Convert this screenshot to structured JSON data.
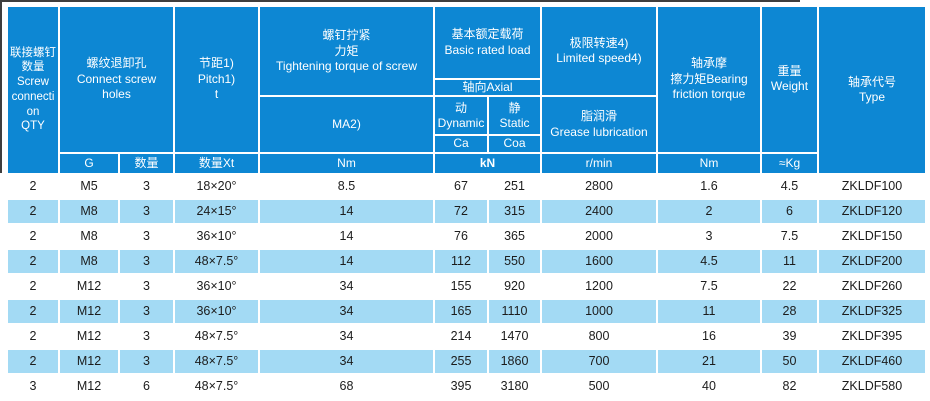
{
  "colors": {
    "header_blue": "#0d87d3",
    "row_alt_blue": "#a3daf4",
    "grid_white": "#ffffff",
    "data_text": "#1c1c1c",
    "edge_dark": "#3e3e3e"
  },
  "table": {
    "header": {
      "screw_connection_qty": "联接螺钉\n数量\nScrew\nconnecti\non\nQTY",
      "connect_screw_holes": "螺纹退卸孔\nConnect screw\nholes",
      "pitch": "节距1)\nPitch1)\nt",
      "tightening_torque": "螺钉拧紧\n力矩\nTightening torque of screw",
      "basic_rated_load": "基本额定载荷\nBasic rated load",
      "axial": "轴向Axial",
      "dynamic": "动\nDynamic",
      "static": "静\nStatic",
      "ca": "Ca",
      "coa": "Coa",
      "ma2": "MA2)",
      "limited_speed": "极限转速4)\nLimited speed4)",
      "grease_lubrication": "脂润滑\nGrease lubrication",
      "bearing_friction_torque": "轴承摩\n擦力矩Bearing\nfriction torque",
      "weight": "重量\nWeight",
      "type": "轴承代号\nType",
      "units": {
        "g": "G",
        "qty": "数量",
        "qty_xt": "数量Xt",
        "nm_torque": "Nm",
        "kn": "kN",
        "r_min": "r/min",
        "nm_friction": "Nm",
        "approx_kg": "≈Kg"
      }
    },
    "rows": [
      [
        "2",
        "M5",
        "3",
        "18×20°",
        "8.5",
        "67",
        "251",
        "2800",
        "1.6",
        "4.5",
        "ZKLDF100"
      ],
      [
        "2",
        "M8",
        "3",
        "24×15°",
        "14",
        "72",
        "315",
        "2400",
        "2",
        "6",
        "ZKLDF120"
      ],
      [
        "2",
        "M8",
        "3",
        "36×10°",
        "14",
        "76",
        "365",
        "2000",
        "3",
        "7.5",
        "ZKLDF150"
      ],
      [
        "2",
        "M8",
        "3",
        "48×7.5°",
        "14",
        "112",
        "550",
        "1600",
        "4.5",
        "11",
        "ZKLDF200"
      ],
      [
        "2",
        "M12",
        "3",
        "36×10°",
        "34",
        "155",
        "920",
        "1200",
        "7.5",
        "22",
        "ZKLDF260"
      ],
      [
        "2",
        "M12",
        "3",
        "36×10°",
        "34",
        "165",
        "1110",
        "1000",
        "11",
        "28",
        "ZKLDF325"
      ],
      [
        "2",
        "M12",
        "3",
        "48×7.5°",
        "34",
        "214",
        "1470",
        "800",
        "16",
        "39",
        "ZKLDF395"
      ],
      [
        "2",
        "M12",
        "3",
        "48×7.5°",
        "34",
        "255",
        "1860",
        "700",
        "21",
        "50",
        "ZKLDF460"
      ],
      [
        "3",
        "M12",
        "6",
        "48×7.5°",
        "68",
        "395",
        "3180",
        "500",
        "40",
        "82",
        "ZKLDF580"
      ]
    ]
  }
}
